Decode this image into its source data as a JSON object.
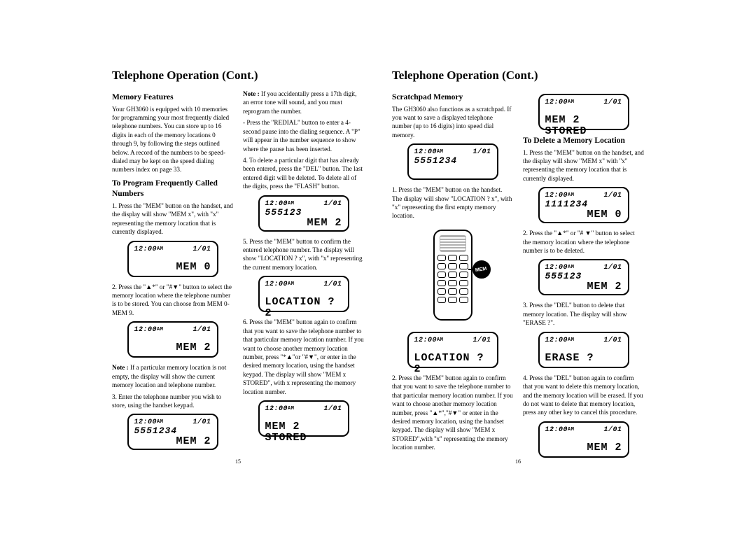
{
  "lcd": {
    "time": "12:00",
    "ampm": "AM",
    "date": "1/01"
  },
  "left_page": {
    "title": "Telephone Operation (Cont.)",
    "page_num": "15",
    "col1": {
      "h_memory": "Memory Features",
      "p_memory": "Your GH3060 is equipped with 10 memories for programming your most frequently dialed telephone numbers. You can store up to 16 digits in each of the memory locations 0 through 9, by following the steps outlined below. A record of the numbers to be speed-dialed may be kept on the speed dialing numbers index on page 33.",
      "h_prog": "To Program Frequently Called Numbers",
      "step1": "1. Press the \"MEM\" button on the handset, and the display will show \"MEM x\", with \"x\" representing the memory location that is currently displayed.",
      "lcd1_bot": "MEM 0",
      "step2": "2. Press the \"▲*\" or \"#▼\" button to select the memory location where the telephone number is to be stored. You can choose from MEM 0-MEM 9.",
      "lcd2_bot": "MEM 2",
      "note1": "If a particular memory location is not empty, the display will show the current memory location and telephone number.",
      "step3": "3. Enter the telephone number you wish to store, using the handset keypad.",
      "lcd3_mid": "5551234",
      "lcd3_bot": "MEM 2"
    },
    "col2": {
      "note2": "If you accidentally press a 17th digit, an error tone will sound, and you must reprogram the number.",
      "p_redial": "- Press the \"REDIAL\" button to enter a 4-second pause into the dialing sequence. A \"P\" will appear in the number sequence to show where the pause has been inserted.",
      "step4": "4. To delete a particular digit that has already been entered, press the \"DEL\" button.  The last entered digit will be deleted. To delete all of the digits, press the \"FLASH\" button.",
      "lcd4_mid": "555123",
      "lcd4_bot": "MEM 2",
      "step5": "5. Press the \"MEM\" button to confirm the entered telephone number. The display will show \"LOCATION ? x\", with ''x'' representing the current memory location.",
      "lcd5_bot": "LOCATION ? 2",
      "step6": "6. Press the \"MEM\" button again to confirm that you want to save the telephone number to that particular memory location number. If you want to choose another    memory location number, press \"*▲\"or \"#▼\", or enter in the desired memory location, using the handset keypad. The display will show \"MEM x STORED\", with x representing the memory location number.",
      "lcd6_bot": "MEM 2 STORED"
    }
  },
  "right_page": {
    "title": "Telephone Operation (Cont.)",
    "page_num": "16",
    "col1": {
      "h_scratch": "Scratchpad Memory",
      "p_scratch": "The GH3060 also functions as a scratchpad. If you want to save a displayed telephone number (up to 16 digits) into speed dial memory.",
      "lcdS_mid": "5551234",
      "step1": "1. Press the \"MEM\" button on the handset. The display will show \"LOCATION ? x\", with \"x\" representing the first empty memory location.",
      "lcdL_bot": "LOCATION ? 2",
      "step2": "2. Press the \"MEM\" button again to confirm that you want to save the telephone number to that particular memory location number. If you want to choose another memory location number, press \"▲*\",\"#▼\" or enter in the desired memory location, using the handset keypad. The display will show \"MEM x STORED\",with ''x'' representing the memory location number."
    },
    "col2": {
      "lcdT_bot": "MEM 2 STORED",
      "h_del": "To Delete a Memory Location",
      "step1": "1. Press the \"MEM\" button on the handset, and the display will show \"MEM x\" with ''x'' representing the memory location that is currently displayed.",
      "lcdD1_mid": "1111234",
      "lcdD1_bot": "MEM 0",
      "step2": "2. Press the \"▲*\" or \"# ▼\" button to select the memory location where the telephone number is to be deleted.",
      "lcdD2_mid": "555123",
      "lcdD2_bot": "MEM 2",
      "step3": "3. Press the \"DEL\" button to delete that memory location. The display will show \"ERASE ?\".",
      "lcdD3_bot": "ERASE ?",
      "step4": "4. Press the \"DEL\" button again to confirm that you want to delete this memory location, and the memory location will be erased. If you do not want to delete that memory location, press any other key to cancel this procedure.",
      "lcdD4_bot": "MEM 2"
    }
  }
}
